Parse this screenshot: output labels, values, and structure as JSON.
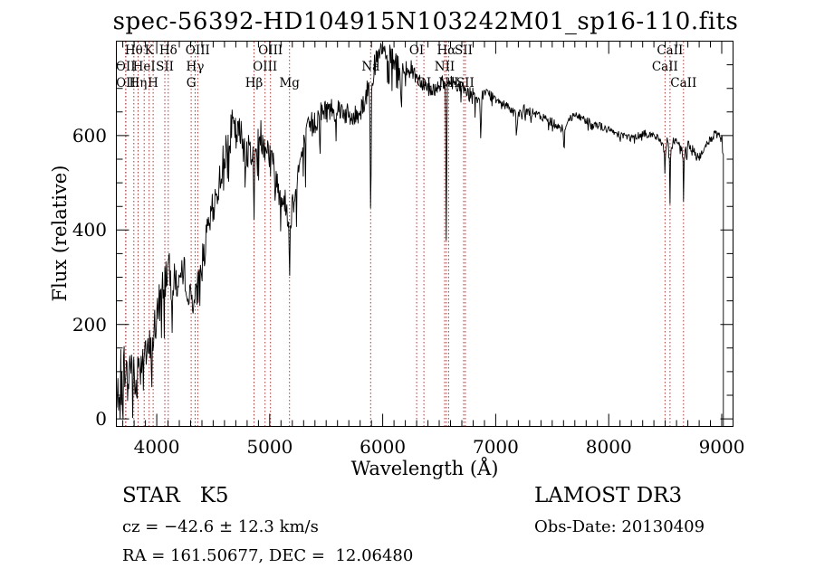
{
  "title": "spec-56392-HD104915N103242M01_sp16-110.fits",
  "annotations": {
    "class_label": "STAR   K5",
    "cz": "cz = −42.6 ± 12.3 km/s",
    "radec": "RA = 161.50677, DEC =  12.06480",
    "survey": "LAMOST DR3",
    "obs_date": "Obs-Date: 20130409"
  },
  "colors": {
    "trace": "#000000",
    "line_markers": "#a63a3a",
    "background": "#ffffff",
    "text": "#000000"
  },
  "chart_data": {
    "type": "line",
    "title": "spec-56392-HD104915N103242M01_sp16-110.fits",
    "xlabel": "Wavelength (Å)",
    "ylabel": "Flux (relative)",
    "xlim": [
      3639,
      9104
    ],
    "ylim": [
      -17,
      801
    ],
    "x_ticks": [
      4000,
      5000,
      6000,
      7000,
      8000,
      9000
    ],
    "y_ticks": [
      0,
      200,
      400,
      600
    ],
    "x_minor_step": 100,
    "y_minor_step": 50,
    "grid": false,
    "legend": "none",
    "spectral_lines": [
      {
        "name": "OII",
        "wavelength": 3725,
        "row": 2
      },
      {
        "name": "OII",
        "wavelength": 3727,
        "row": 3
      },
      {
        "name": "Hθ",
        "wavelength": 3798,
        "row": 1
      },
      {
        "name": "Hη",
        "wavelength": 3835,
        "row": 3
      },
      {
        "name": "HeI",
        "wavelength": 3889,
        "row": 2
      },
      {
        "name": "K",
        "wavelength": 3933,
        "row": 1
      },
      {
        "name": "H",
        "wavelength": 3968,
        "row": 3
      },
      {
        "name": "SII",
        "wavelength": 4072,
        "row": 2
      },
      {
        "name": "Hδ",
        "wavelength": 4102,
        "row": 1
      },
      {
        "name": "G",
        "wavelength": 4305,
        "row": 3
      },
      {
        "name": "Hγ",
        "wavelength": 4340,
        "row": 2
      },
      {
        "name": "OIII",
        "wavelength": 4363,
        "row": 1
      },
      {
        "name": "Hβ",
        "wavelength": 4861,
        "row": 3
      },
      {
        "name": "OIII",
        "wavelength": 4959,
        "row": 2
      },
      {
        "name": "OIII",
        "wavelength": 5007,
        "row": 1
      },
      {
        "name": "Mg",
        "wavelength": 5175,
        "row": 3
      },
      {
        "name": "Na",
        "wavelength": 5893,
        "row": 2
      },
      {
        "name": "OI",
        "wavelength": 6300,
        "row": 1
      },
      {
        "name": "OI",
        "wavelength": 6364,
        "row": 3
      },
      {
        "name": "NII",
        "wavelength": 6548,
        "row": 2
      },
      {
        "name": "Hα",
        "wavelength": 6563,
        "row": 1
      },
      {
        "name": "NII",
        "wavelength": 6583,
        "row": 3
      },
      {
        "name": "SII",
        "wavelength": 6716,
        "row": 1
      },
      {
        "name": "SII",
        "wavelength": 6731,
        "row": 3
      },
      {
        "name": "CaII",
        "wavelength": 8498,
        "row": 2
      },
      {
        "name": "CaII",
        "wavelength": 8542,
        "row": 1
      },
      {
        "name": "CaII",
        "wavelength": 8662,
        "row": 3
      }
    ],
    "series": [
      {
        "name": "spectrum",
        "envelope": [
          [
            3645,
            15
          ],
          [
            3665,
            70
          ],
          [
            3685,
            110
          ],
          [
            3700,
            90
          ],
          [
            3715,
            130
          ],
          [
            3730,
            100
          ],
          [
            3745,
            60
          ],
          [
            3760,
            110
          ],
          [
            3780,
            130
          ],
          [
            3800,
            90
          ],
          [
            3815,
            60
          ],
          [
            3830,
            100
          ],
          [
            3845,
            135
          ],
          [
            3860,
            110
          ],
          [
            3875,
            150
          ],
          [
            3890,
            165
          ],
          [
            3905,
            140
          ],
          [
            3920,
            125
          ],
          [
            3935,
            155
          ],
          [
            3950,
            130
          ],
          [
            3965,
            165
          ],
          [
            3980,
            190
          ],
          [
            4000,
            215
          ],
          [
            4025,
            250
          ],
          [
            4050,
            280
          ],
          [
            4075,
            300
          ],
          [
            4100,
            320
          ],
          [
            4125,
            295
          ],
          [
            4150,
            285
          ],
          [
            4175,
            295
          ],
          [
            4200,
            300
          ],
          [
            4225,
            295
          ],
          [
            4250,
            310
          ],
          [
            4275,
            290
          ],
          [
            4300,
            245
          ],
          [
            4320,
            265
          ],
          [
            4340,
            240
          ],
          [
            4360,
            275
          ],
          [
            4385,
            310
          ],
          [
            4410,
            340
          ],
          [
            4435,
            370
          ],
          [
            4460,
            405
          ],
          [
            4485,
            430
          ],
          [
            4510,
            455
          ],
          [
            4535,
            480
          ],
          [
            4560,
            510
          ],
          [
            4585,
            540
          ],
          [
            4610,
            570
          ],
          [
            4635,
            600
          ],
          [
            4660,
            620
          ],
          [
            4685,
            610
          ],
          [
            4710,
            595
          ],
          [
            4735,
            605
          ],
          [
            4760,
            590
          ],
          [
            4785,
            575
          ],
          [
            4810,
            560
          ],
          [
            4835,
            580
          ],
          [
            4860,
            545
          ],
          [
            4885,
            590
          ],
          [
            4910,
            600
          ],
          [
            4935,
            595
          ],
          [
            4960,
            585
          ],
          [
            4985,
            570
          ],
          [
            5010,
            555
          ],
          [
            5035,
            530
          ],
          [
            5060,
            505
          ],
          [
            5085,
            485
          ],
          [
            5110,
            470
          ],
          [
            5135,
            455
          ],
          [
            5160,
            440
          ],
          [
            5175,
            420
          ],
          [
            5195,
            445
          ],
          [
            5220,
            480
          ],
          [
            5245,
            515
          ],
          [
            5270,
            545
          ],
          [
            5295,
            570
          ],
          [
            5320,
            590
          ],
          [
            5345,
            610
          ],
          [
            5370,
            620
          ],
          [
            5400,
            630
          ],
          [
            5430,
            640
          ],
          [
            5460,
            648
          ],
          [
            5490,
            653
          ],
          [
            5520,
            655
          ],
          [
            5560,
            658
          ],
          [
            5600,
            660
          ],
          [
            5640,
            655
          ],
          [
            5680,
            645
          ],
          [
            5720,
            635
          ],
          [
            5760,
            640
          ],
          [
            5800,
            655
          ],
          [
            5840,
            675
          ],
          [
            5880,
            705
          ],
          [
            5920,
            740
          ],
          [
            5960,
            765
          ],
          [
            6000,
            778
          ],
          [
            6040,
            772
          ],
          [
            6080,
            766
          ],
          [
            6120,
            752
          ],
          [
            6160,
            738
          ],
          [
            6200,
            748
          ],
          [
            6240,
            742
          ],
          [
            6280,
            732
          ],
          [
            6320,
            722
          ],
          [
            6360,
            712
          ],
          [
            6400,
            702
          ],
          [
            6440,
            695
          ],
          [
            6480,
            705
          ],
          [
            6520,
            712
          ],
          [
            6560,
            702
          ],
          [
            6600,
            715
          ],
          [
            6640,
            710
          ],
          [
            6680,
            705
          ],
          [
            6720,
            698
          ],
          [
            6760,
            694
          ],
          [
            6800,
            690
          ],
          [
            6840,
            665
          ],
          [
            6880,
            688
          ],
          [
            6920,
            690
          ],
          [
            6960,
            685
          ],
          [
            7000,
            680
          ],
          [
            7050,
            673
          ],
          [
            7100,
            666
          ],
          [
            7150,
            652
          ],
          [
            7200,
            646
          ],
          [
            7250,
            655
          ],
          [
            7300,
            650
          ],
          [
            7350,
            645
          ],
          [
            7400,
            640
          ],
          [
            7450,
            635
          ],
          [
            7500,
            629
          ],
          [
            7550,
            621
          ],
          [
            7600,
            614
          ],
          [
            7650,
            637
          ],
          [
            7700,
            643
          ],
          [
            7750,
            638
          ],
          [
            7800,
            633
          ],
          [
            7850,
            628
          ],
          [
            7900,
            623
          ],
          [
            7950,
            617
          ],
          [
            8000,
            611
          ],
          [
            8050,
            607
          ],
          [
            8100,
            603
          ],
          [
            8150,
            599
          ],
          [
            8200,
            595
          ],
          [
            8250,
            599
          ],
          [
            8300,
            604
          ],
          [
            8350,
            604
          ],
          [
            8400,
            599
          ],
          [
            8450,
            594
          ],
          [
            8498,
            570
          ],
          [
            8520,
            590
          ],
          [
            8542,
            555
          ],
          [
            8570,
            588
          ],
          [
            8600,
            590
          ],
          [
            8630,
            586
          ],
          [
            8662,
            550
          ],
          [
            8700,
            583
          ],
          [
            8740,
            573
          ],
          [
            8780,
            553
          ],
          [
            8820,
            558
          ],
          [
            8860,
            578
          ],
          [
            8900,
            592
          ],
          [
            8940,
            602
          ],
          [
            8980,
            598
          ],
          [
            9010,
            588
          ]
        ],
        "noise_profile": [
          [
            3645,
            52
          ],
          [
            4000,
            46
          ],
          [
            4300,
            40
          ],
          [
            4600,
            40
          ],
          [
            4900,
            42
          ],
          [
            5100,
            34
          ],
          [
            5300,
            36
          ],
          [
            5600,
            24
          ],
          [
            5900,
            28
          ],
          [
            6100,
            24
          ],
          [
            6400,
            17
          ],
          [
            6700,
            14
          ],
          [
            7000,
            12
          ],
          [
            7400,
            10
          ],
          [
            7800,
            9
          ],
          [
            8200,
            8
          ],
          [
            8600,
            9
          ],
          [
            9010,
            10
          ]
        ],
        "absorption_dips": [
          [
            4861,
            115,
            6
          ],
          [
            5175,
            130,
            5
          ],
          [
            5893,
            272,
            5
          ],
          [
            6165,
            118,
            4
          ],
          [
            6563,
            350,
            4
          ],
          [
            6867,
            85,
            6
          ],
          [
            7186,
            45,
            6
          ],
          [
            7605,
            55,
            6
          ],
          [
            8498,
            55,
            3.5
          ],
          [
            8542,
            95,
            3.5
          ],
          [
            8662,
            95,
            3.5
          ]
        ],
        "end_drop_wavelength": 9014
      }
    ]
  }
}
